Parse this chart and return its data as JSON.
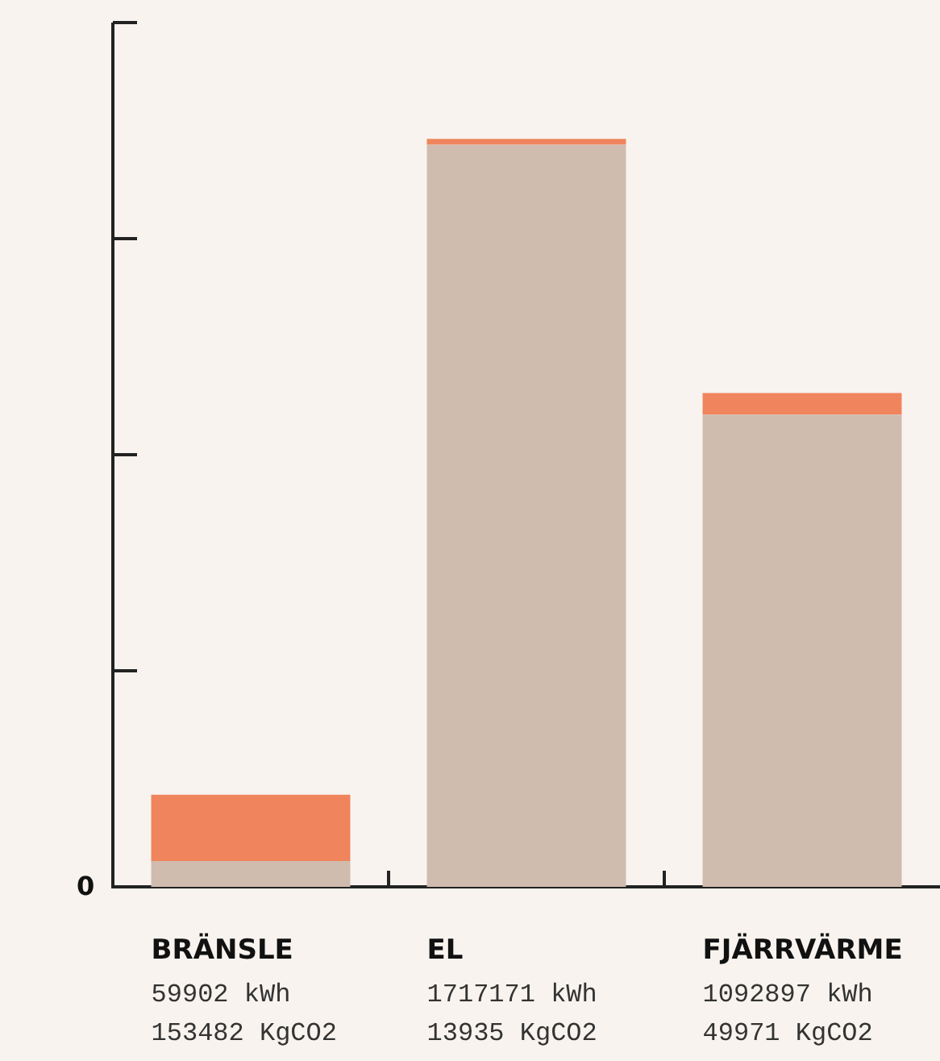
{
  "chart_data": {
    "type": "bar",
    "stacked": true,
    "categories": [
      "BRÄNSLE",
      "EL",
      "FJÄRRVÄRME"
    ],
    "series": [
      {
        "color": "#cfbcae",
        "values": [
          59902,
          1717171,
          1092897
        ],
        "value_labels": [
          "59902 kWh",
          "1717171 kWh",
          "1092897 kWh"
        ]
      },
      {
        "color": "#f0845c",
        "values": [
          153482,
          13935,
          49971
        ],
        "value_labels": [
          "153482 KgCO2",
          "13935 KgCO2",
          "49971 KgCO2"
        ]
      }
    ],
    "annotations": [
      "0"
    ],
    "grid": false,
    "legend": false
  }
}
